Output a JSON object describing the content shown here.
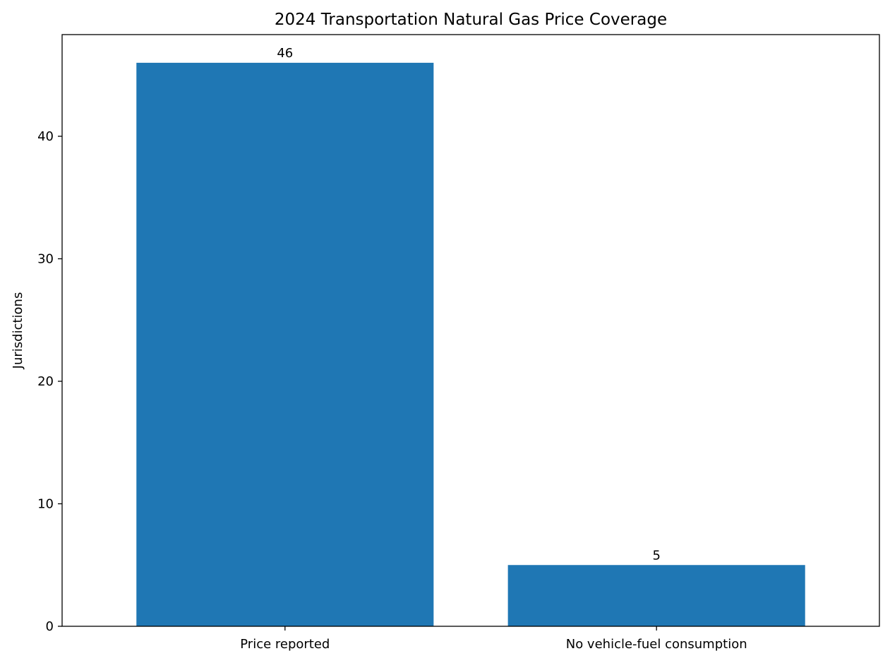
{
  "chart_data": {
    "type": "bar",
    "title": "2024 Transportation Natural Gas Price Coverage",
    "xlabel": "",
    "ylabel": "Jurisdictions",
    "categories": [
      "Price reported",
      "No vehicle-fuel consumption"
    ],
    "values": [
      46,
      5
    ],
    "data_labels": [
      "46",
      "5"
    ],
    "ylim": [
      0,
      48.3
    ],
    "yticks": [
      0,
      10,
      20,
      30,
      40
    ],
    "ytick_labels": [
      "0",
      "10",
      "20",
      "30",
      "40"
    ],
    "grid": false,
    "legend": "none",
    "colors": {
      "bar": "#1f77b4",
      "axes": "#000000",
      "background": "#ffffff"
    }
  }
}
